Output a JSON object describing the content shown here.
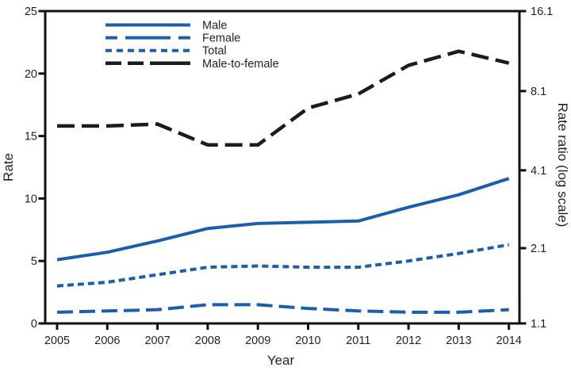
{
  "colors": {
    "series_blue": "#1b5ead",
    "series_black": "#1c1c1c",
    "axis": "#111111",
    "text": "#231f20",
    "background": "#ffffff"
  },
  "chart_data": {
    "type": "line",
    "title": "",
    "x": [
      2005,
      2006,
      2007,
      2008,
      2009,
      2010,
      2011,
      2012,
      2013,
      2014
    ],
    "series": [
      {
        "name": "Male",
        "axis": "left",
        "color": "blue",
        "line_style": "solid",
        "values": [
          5.1,
          5.7,
          6.6,
          7.6,
          8.0,
          8.1,
          8.2,
          9.3,
          10.3,
          11.6
        ]
      },
      {
        "name": "Female",
        "axis": "left",
        "color": "blue",
        "line_style": "long-dash",
        "values": [
          0.9,
          1.0,
          1.1,
          1.5,
          1.5,
          1.2,
          1.0,
          0.9,
          0.9,
          1.1
        ]
      },
      {
        "name": "Total",
        "axis": "left",
        "color": "blue",
        "line_style": "short-dash",
        "values": [
          3.0,
          3.3,
          3.9,
          4.5,
          4.6,
          4.5,
          4.5,
          5.0,
          5.6,
          6.3
        ]
      },
      {
        "name": "Male-to-female",
        "axis": "right",
        "color": "black",
        "line_style": "ratio-dash",
        "values": [
          6.0,
          6.0,
          6.1,
          5.1,
          5.1,
          7.0,
          7.9,
          10.1,
          11.4,
          10.3
        ]
      }
    ],
    "axes": {
      "left": {
        "label": "Rate",
        "scale": "linear",
        "min": 0,
        "max": 25,
        "ticks": [
          0,
          5,
          10,
          15,
          20,
          25
        ]
      },
      "right": {
        "label": "Rate ratio (log scale)",
        "scale": "log",
        "min": 1.1,
        "max": 16.1,
        "ticks": [
          1.1,
          2.1,
          4.1,
          8.1,
          16.1
        ]
      },
      "x": {
        "label": "Year",
        "ticks": [
          2005,
          2006,
          2007,
          2008,
          2009,
          2010,
          2011,
          2012,
          2013,
          2014
        ]
      }
    },
    "legend": {
      "position": "top-left-inside",
      "items": [
        "Male",
        "Female",
        "Total",
        "Male-to-female"
      ]
    },
    "grid": false
  }
}
